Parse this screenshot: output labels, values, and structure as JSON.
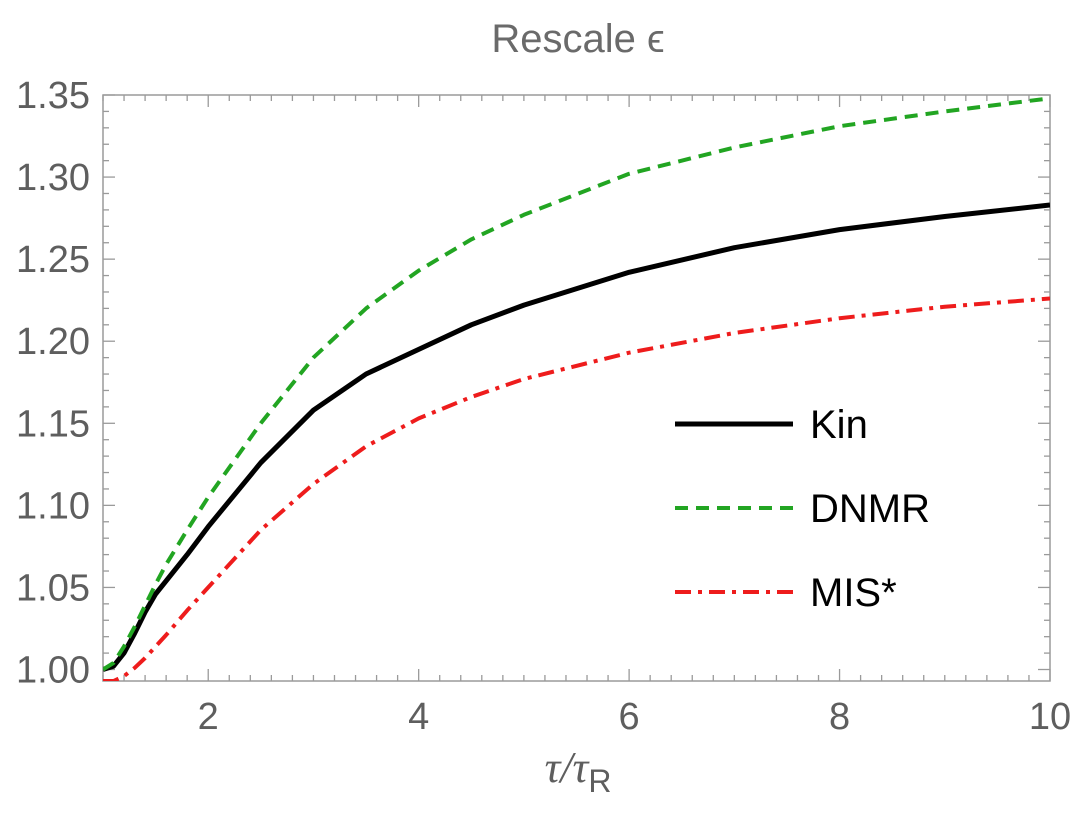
{
  "chart_data": {
    "type": "line",
    "title": "Rescale ϵ",
    "xlabel_main": "τ/τ",
    "xlabel_sub": "R",
    "ylabel": "",
    "xlim": [
      1,
      10
    ],
    "ylim": [
      0.993,
      1.35
    ],
    "x_ticks": [
      2,
      4,
      6,
      8,
      10
    ],
    "x_tick_labels": [
      "2",
      "4",
      "6",
      "8",
      "10"
    ],
    "y_ticks": [
      1.0,
      1.05,
      1.1,
      1.15,
      1.2,
      1.25,
      1.3,
      1.35
    ],
    "y_tick_labels": [
      "1.00",
      "1.05",
      "1.10",
      "1.15",
      "1.20",
      "1.25",
      "1.30",
      "1.35"
    ],
    "legend_position": "right",
    "series": [
      {
        "name": "Kin",
        "color": "#000000",
        "style": "solid",
        "x": [
          1.0,
          1.1,
          1.2,
          1.3,
          1.4,
          1.5,
          1.6,
          1.8,
          2.0,
          2.5,
          3.0,
          3.5,
          4.0,
          4.5,
          5.0,
          6.0,
          7.0,
          8.0,
          9.0,
          10.0
        ],
        "y": [
          1.0,
          1.002,
          1.01,
          1.022,
          1.035,
          1.046,
          1.054,
          1.07,
          1.087,
          1.126,
          1.158,
          1.18,
          1.195,
          1.21,
          1.222,
          1.242,
          1.257,
          1.268,
          1.276,
          1.283
        ]
      },
      {
        "name": "DNMR",
        "color": "#22a522",
        "style": "dashed",
        "x": [
          1.0,
          1.1,
          1.2,
          1.3,
          1.4,
          1.5,
          1.6,
          1.8,
          2.0,
          2.5,
          3.0,
          3.5,
          4.0,
          4.5,
          5.0,
          6.0,
          7.0,
          8.0,
          9.0,
          10.0
        ],
        "y": [
          1.0,
          1.004,
          1.014,
          1.026,
          1.039,
          1.052,
          1.064,
          1.085,
          1.105,
          1.15,
          1.19,
          1.22,
          1.243,
          1.262,
          1.277,
          1.302,
          1.318,
          1.331,
          1.34,
          1.348
        ]
      },
      {
        "name": "MIS*",
        "color": "#ee1c1c",
        "style": "dashdot",
        "x": [
          1.0,
          1.1,
          1.2,
          1.3,
          1.4,
          1.5,
          1.6,
          1.8,
          2.0,
          2.5,
          3.0,
          3.5,
          4.0,
          4.5,
          5.0,
          6.0,
          7.0,
          8.0,
          9.0,
          10.0
        ],
        "y": [
          0.993,
          0.993,
          0.996,
          1.001,
          1.007,
          1.014,
          1.021,
          1.036,
          1.05,
          1.085,
          1.113,
          1.136,
          1.153,
          1.166,
          1.177,
          1.193,
          1.205,
          1.214,
          1.221,
          1.226
        ]
      }
    ]
  }
}
